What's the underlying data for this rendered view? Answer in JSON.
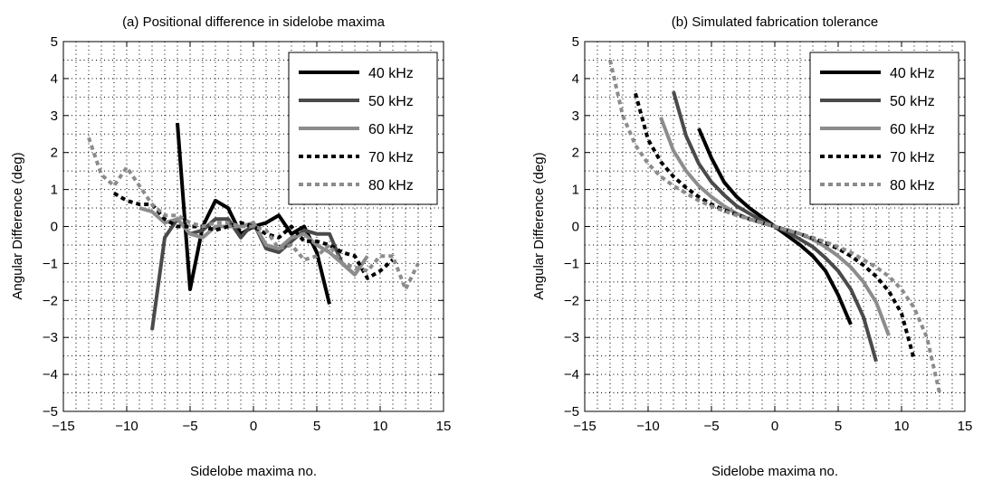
{
  "chart_data": [
    {
      "type": "line",
      "title": "(a)  Positional difference in sidelobe maxima",
      "xlabel": "Sidelobe maxima no.",
      "ylabel": "Angular Difference (deg)",
      "xlim": [
        -15,
        15
      ],
      "ylim": [
        -5,
        5
      ],
      "xticks": [
        -15,
        -10,
        -5,
        0,
        5,
        10,
        15
      ],
      "yticks": [
        -5,
        -4,
        -3,
        -2,
        -1,
        0,
        1,
        2,
        3,
        4,
        5
      ],
      "grid": "dotted",
      "legend_position": "top-right",
      "series": [
        {
          "name": "40 kHz",
          "color": "#000000",
          "dash": "solid",
          "x": [
            -6,
            -5,
            -4,
            -3,
            -2,
            -1,
            0,
            1,
            2,
            3,
            4,
            5,
            6
          ],
          "y": [
            2.8,
            -1.7,
            0.0,
            0.7,
            0.5,
            -0.2,
            0.0,
            0.1,
            0.3,
            -0.2,
            0.0,
            -0.7,
            -2.1
          ]
        },
        {
          "name": "50 kHz",
          "color": "#4a4a4a",
          "dash": "solid",
          "x": [
            -8,
            -7,
            -6,
            -5,
            -4,
            -3,
            -2,
            -1,
            0,
            1,
            2,
            3,
            4,
            5,
            6,
            7,
            8
          ],
          "y": [
            -2.8,
            -0.3,
            0.2,
            -0.2,
            -0.1,
            0.2,
            0.2,
            -0.3,
            0.1,
            -0.6,
            -0.7,
            -0.4,
            -0.1,
            -0.2,
            -0.2,
            -1.0,
            -1.3
          ]
        },
        {
          "name": "60 kHz",
          "color": "#8c8c8c",
          "dash": "solid",
          "x": [
            -9,
            -8,
            -7,
            -6,
            -5,
            -4,
            -3,
            -2,
            -1,
            0,
            1,
            2,
            3,
            4,
            5,
            6,
            7,
            8,
            9
          ],
          "y": [
            0.5,
            0.4,
            0.1,
            0.2,
            -0.2,
            -0.3,
            0.0,
            0.0,
            0.0,
            0.1,
            -0.5,
            -0.6,
            -0.3,
            -0.2,
            -0.5,
            -0.7,
            -1.0,
            -1.3,
            -0.8
          ]
        },
        {
          "name": "70 kHz",
          "color": "#000000",
          "dash": "dotted",
          "x": [
            -11,
            -10,
            -9,
            -8,
            -7,
            -6,
            -5,
            -4,
            -3,
            -2,
            -1,
            0,
            1,
            2,
            3,
            4,
            5,
            6,
            7,
            8,
            9,
            10,
            11
          ],
          "y": [
            0.9,
            0.7,
            0.6,
            0.6,
            0.2,
            0.0,
            0.0,
            0.0,
            -0.1,
            0.0,
            0.1,
            0.0,
            -0.2,
            -0.3,
            0.0,
            -0.4,
            -0.4,
            -0.5,
            -0.7,
            -0.8,
            -1.4,
            -1.2,
            -0.9
          ]
        },
        {
          "name": "80 kHz",
          "color": "#8c8c8c",
          "dash": "dotted",
          "x": [
            -13,
            -12,
            -11,
            -10,
            -9,
            -8,
            -7,
            -6,
            -5,
            -4,
            -3,
            -2,
            -1,
            0,
            1,
            2,
            3,
            4,
            5,
            6,
            7,
            8,
            9,
            10,
            11,
            12,
            13
          ],
          "y": [
            2.4,
            1.4,
            1.1,
            1.6,
            1.1,
            0.6,
            0.3,
            0.3,
            0.1,
            0.0,
            0.1,
            0.1,
            0.0,
            0.0,
            -0.1,
            -0.6,
            -0.5,
            -0.9,
            -0.8,
            -0.5,
            -1.0,
            -1.1,
            -1.2,
            -0.8,
            -0.8,
            -1.7,
            -1.0
          ]
        }
      ]
    },
    {
      "type": "line",
      "title": "(b)  Simulated fabrication tolerance",
      "xlabel": "Sidelobe maxima no.",
      "ylabel": "Angular Difference (deg)",
      "xlim": [
        -15,
        15
      ],
      "ylim": [
        -5,
        5
      ],
      "xticks": [
        -15,
        -10,
        -5,
        0,
        5,
        10,
        15
      ],
      "yticks": [
        -5,
        -4,
        -3,
        -2,
        -1,
        0,
        1,
        2,
        3,
        4,
        5
      ],
      "grid": "dotted",
      "legend_position": "top-right",
      "series": [
        {
          "name": "40 kHz",
          "color": "#000000",
          "dash": "solid",
          "x": [
            -6,
            -5,
            -4,
            -3,
            -2,
            -1,
            0,
            1,
            2,
            3,
            4,
            5,
            6
          ],
          "y": [
            2.65,
            1.85,
            1.2,
            0.8,
            0.5,
            0.25,
            0.0,
            -0.25,
            -0.5,
            -0.8,
            -1.2,
            -1.85,
            -2.65
          ]
        },
        {
          "name": "50 kHz",
          "color": "#4a4a4a",
          "dash": "solid",
          "x": [
            -8,
            -7,
            -6,
            -5,
            -4,
            -3,
            -2,
            -1,
            0,
            1,
            2,
            3,
            4,
            5,
            6,
            7,
            8
          ],
          "y": [
            3.65,
            2.45,
            1.7,
            1.2,
            0.85,
            0.55,
            0.35,
            0.15,
            0.0,
            -0.15,
            -0.35,
            -0.55,
            -0.85,
            -1.2,
            -1.7,
            -2.45,
            -3.65
          ]
        },
        {
          "name": "60 kHz",
          "color": "#8c8c8c",
          "dash": "solid",
          "x": [
            -9,
            -8,
            -7,
            -6,
            -5,
            -4,
            -3,
            -2,
            -1,
            0,
            1,
            2,
            3,
            4,
            5,
            6,
            7,
            8,
            9
          ],
          "y": [
            2.95,
            2.05,
            1.5,
            1.1,
            0.8,
            0.55,
            0.35,
            0.2,
            0.1,
            0.0,
            -0.1,
            -0.2,
            -0.35,
            -0.55,
            -0.8,
            -1.1,
            -1.5,
            -2.05,
            -2.95
          ]
        },
        {
          "name": "70 kHz",
          "color": "#000000",
          "dash": "dotted",
          "x": [
            -11,
            -10,
            -9,
            -8,
            -7,
            -6,
            -5,
            -4,
            -3,
            -2,
            -1,
            0,
            1,
            2,
            3,
            4,
            5,
            6,
            7,
            8,
            9,
            10,
            11
          ],
          "y": [
            3.6,
            2.35,
            1.75,
            1.35,
            1.05,
            0.8,
            0.6,
            0.45,
            0.32,
            0.2,
            0.1,
            0.0,
            -0.1,
            -0.2,
            -0.32,
            -0.45,
            -0.6,
            -0.8,
            -1.05,
            -1.35,
            -1.75,
            -2.35,
            -3.6
          ]
        },
        {
          "name": "80 kHz",
          "color": "#8c8c8c",
          "dash": "dotted",
          "x": [
            -13,
            -12,
            -11,
            -10,
            -9,
            -8,
            -7,
            -6,
            -5,
            -4,
            -3,
            -2,
            -1,
            0,
            1,
            2,
            3,
            4,
            5,
            6,
            7,
            8,
            9,
            10,
            11,
            12,
            13
          ],
          "y": [
            4.5,
            3.0,
            2.2,
            1.7,
            1.35,
            1.1,
            0.9,
            0.7,
            0.55,
            0.42,
            0.3,
            0.2,
            0.1,
            0.0,
            -0.1,
            -0.2,
            -0.3,
            -0.42,
            -0.55,
            -0.7,
            -0.9,
            -1.1,
            -1.35,
            -1.7,
            -2.2,
            -3.0,
            -4.5
          ]
        }
      ]
    }
  ]
}
